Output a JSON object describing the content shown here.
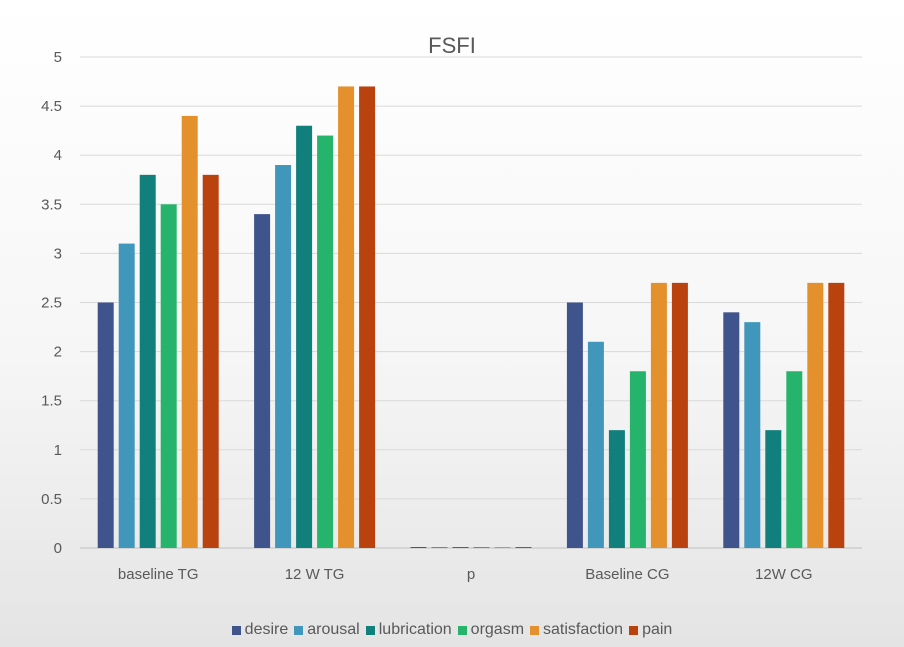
{
  "chart_data": {
    "type": "bar",
    "title": "FSFI",
    "xlabel": "",
    "ylabel": "",
    "ylim": [
      0,
      5
    ],
    "yticks": [
      "0",
      "0.5",
      "1",
      "1.5",
      "2",
      "2.5",
      "3",
      "3.5",
      "4",
      "4.5",
      "5"
    ],
    "grid": true,
    "legend_position": "bottom",
    "categories": [
      "baseline TG",
      "12 W TG",
      "p",
      "Baseline CG",
      "12W CG"
    ],
    "series": [
      {
        "name": "desire",
        "color": "#3F548C",
        "values": [
          2.5,
          3.4,
          0.01,
          2.5,
          2.4
        ]
      },
      {
        "name": "arousal",
        "color": "#4196BC",
        "values": [
          3.1,
          3.9,
          0.01,
          2.1,
          2.3
        ]
      },
      {
        "name": "lubrication",
        "color": "#117F7B",
        "values": [
          3.8,
          4.3,
          0.01,
          1.2,
          1.2
        ]
      },
      {
        "name": "orgasm",
        "color": "#26B46C",
        "values": [
          3.5,
          4.2,
          0.01,
          1.8,
          1.8
        ]
      },
      {
        "name": "satisfaction",
        "color": "#E4902C",
        "values": [
          4.4,
          4.7,
          0.01,
          2.7,
          2.7
        ]
      },
      {
        "name": "pain",
        "color": "#BA420E",
        "values": [
          3.8,
          4.7,
          0.01,
          2.7,
          2.7
        ]
      }
    ]
  }
}
